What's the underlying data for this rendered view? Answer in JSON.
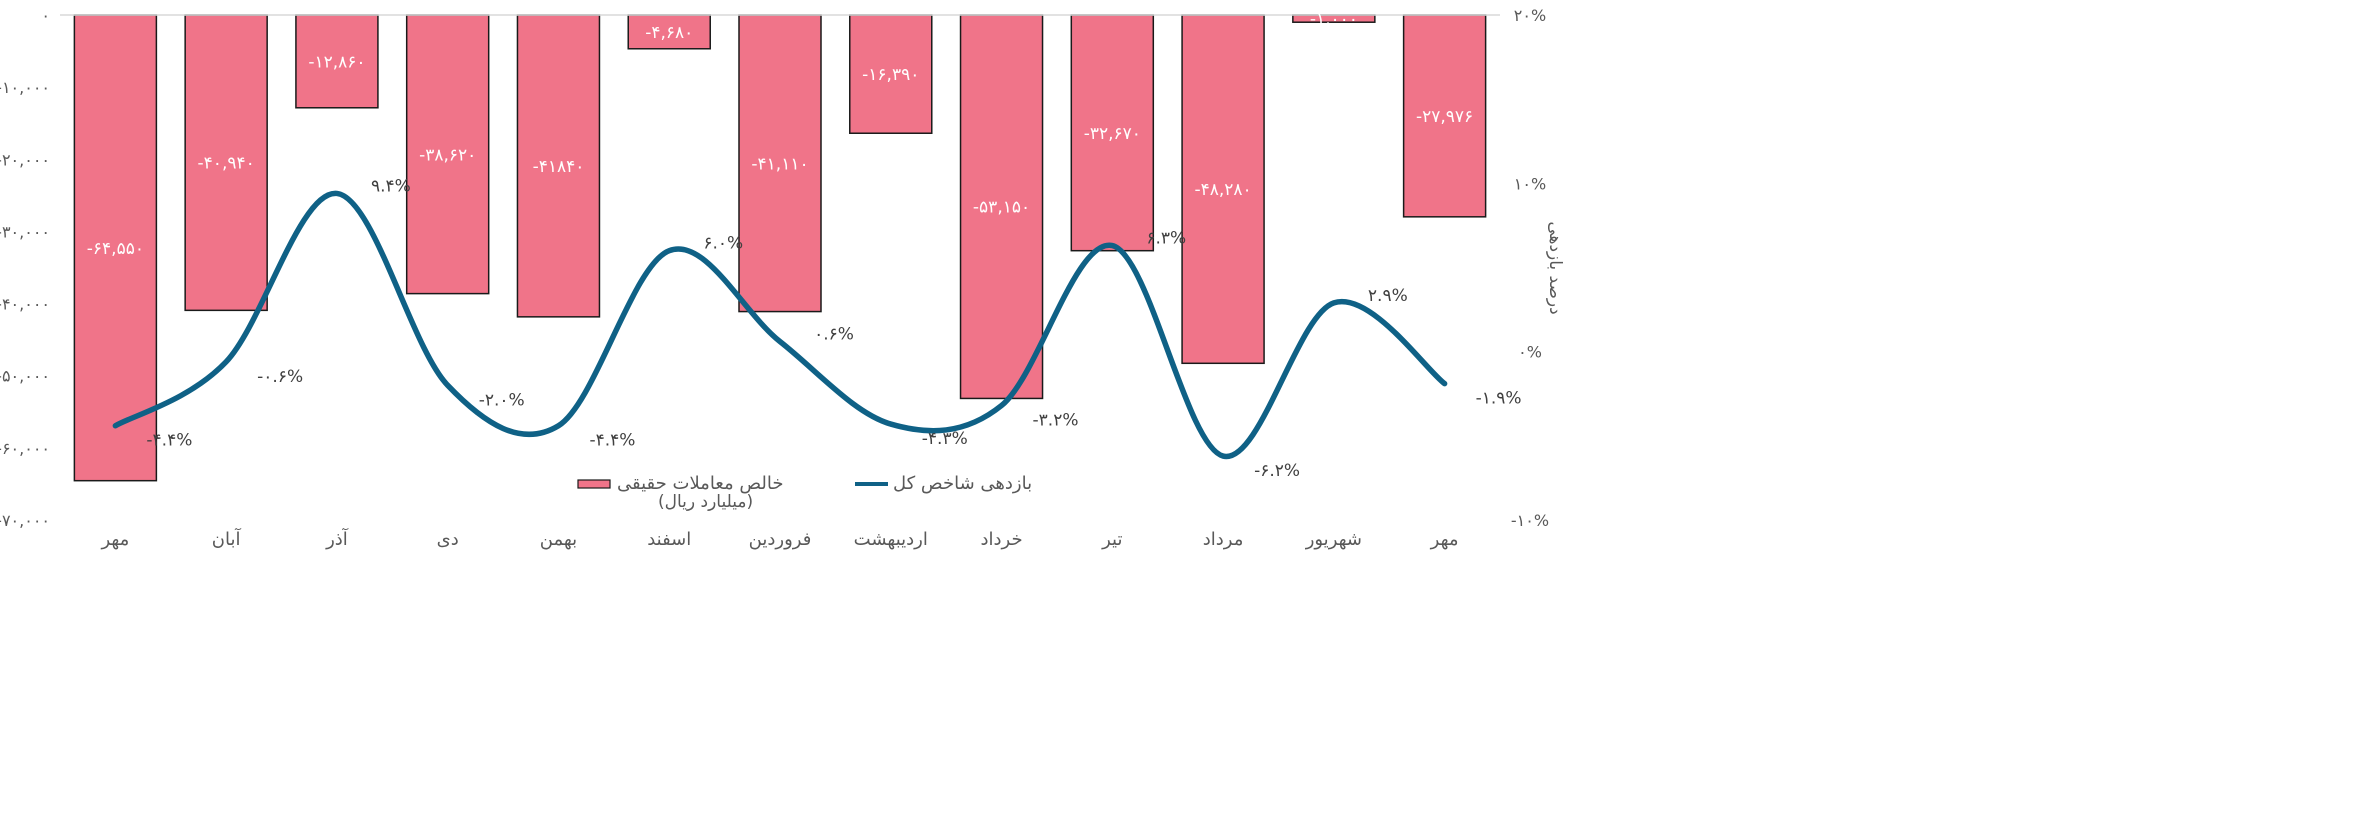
{
  "chart_data": {
    "type": "bar+line",
    "categories": [
      "مهر",
      "آبان",
      "آذر",
      "دی",
      "بهمن",
      "اسفند",
      "فروردین",
      "اردیبهشت",
      "خرداد",
      "تیر",
      "مرداد",
      "شهریور",
      "مهر"
    ],
    "series": [
      {
        "name": "خالص معاملات حقیقی",
        "name_line2": "(میلیارد ریال)",
        "type": "bar",
        "axis": "left",
        "values": [
          -64550,
          -40940,
          -12860,
          -38620,
          -41840,
          -4680,
          -41110,
          -16390,
          -53150,
          -32670,
          -48280,
          -1000,
          -27976
        ],
        "labels": [
          "-۶۴,۵۵۰",
          "-۴۰,۹۴۰",
          "-۱۲,۸۶۰",
          "-۳۸,۶۲۰",
          "-۴۱۸۴۰",
          "-۴,۶۸۰",
          "-۴۱,۱۱۰",
          "-۱۶,۳۹۰",
          "-۵۳,۱۵۰",
          "-۳۲,۶۷۰",
          "-۴۸,۲۸۰",
          "-۱,۰۰۰",
          "-۲۷,۹۷۶"
        ],
        "color": "#F07489",
        "border": "#1a1a1a"
      },
      {
        "name": "بازدهی شاخص کل",
        "type": "line",
        "axis": "right",
        "values": [
          -4.4,
          -0.6,
          9.4,
          -2.0,
          -4.4,
          6.0,
          0.6,
          -4.3,
          -3.2,
          6.3,
          -6.2,
          2.9,
          -1.9
        ],
        "labels": [
          "-۴.۴%",
          "-۰.۶%",
          "۹.۴%",
          "-۲.۰%",
          "-۴.۴%",
          "۶.۰%",
          "۰.۶%",
          "-۴.۳%",
          "-۳.۲%",
          "۶.۳%",
          "-۶.۲%",
          "۲.۹%",
          "-۱.۹%"
        ],
        "color": "#0F6186"
      }
    ],
    "y_left": {
      "ylim": [
        -70000,
        0
      ],
      "ticks": [
        0,
        -10000,
        -20000,
        -30000,
        -40000,
        -50000,
        -60000,
        -70000
      ],
      "tick_labels": [
        "۰",
        "-۱۰,۰۰۰",
        "-۲۰,۰۰۰",
        "-۳۰,۰۰۰",
        "-۴۰,۰۰۰",
        "-۵۰,۰۰۰",
        "-۶۰,۰۰۰",
        "-۷۰,۰۰۰"
      ]
    },
    "y_right": {
      "ylim": [
        -10,
        20
      ],
      "ticks": [
        20,
        10,
        0,
        -10
      ],
      "tick_labels": [
        "۲۰%",
        "۱۰%",
        "۰%",
        "-۱۰%"
      ],
      "label": "درصد بازدهی"
    },
    "legend": {
      "position": "bottom-center"
    },
    "grid": false
  }
}
